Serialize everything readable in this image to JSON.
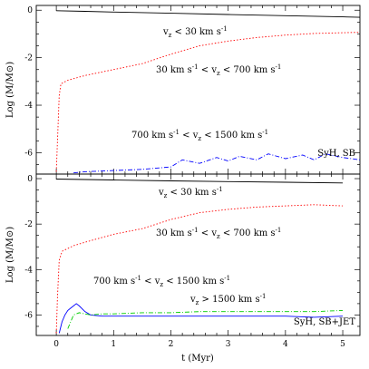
{
  "chart_data": [
    {
      "type": "line",
      "panel": "top",
      "ylabel": "Log (M/M⊙)",
      "xlim": [
        -0.35,
        5.3
      ],
      "ylim": [
        -6.9,
        0.2
      ],
      "yticks": [
        0,
        -2,
        -4,
        -6
      ],
      "tag": "SyH, SB",
      "series": [
        {
          "label_parts": [
            "v",
            "z",
            " < 30 km s",
            "-1",
            ""
          ],
          "color": "#000000",
          "dash": "",
          "x": [
            0.0,
            0.5,
            1.0,
            2.0,
            3.0,
            4.0,
            5.0,
            5.3
          ],
          "y": [
            -0.02,
            -0.05,
            -0.08,
            -0.13,
            -0.18,
            -0.23,
            -0.28,
            -0.3
          ]
        },
        {
          "label_parts": [
            "30 km s",
            "-1",
            " < v",
            "z",
            " < 700 km s",
            "-1"
          ],
          "color": "#ff0000",
          "dash": "1.5,2",
          "x": [
            0.0,
            0.02,
            0.05,
            0.08,
            0.2,
            0.5,
            1.0,
            1.5,
            2.0,
            2.5,
            3.0,
            3.5,
            4.0,
            4.5,
            5.0,
            5.3
          ],
          "y": [
            -6.8,
            -5.5,
            -3.6,
            -3.1,
            -2.95,
            -2.75,
            -2.5,
            -2.25,
            -1.85,
            -1.5,
            -1.3,
            -1.15,
            -1.05,
            -0.98,
            -0.95,
            -0.93
          ]
        },
        {
          "label_parts": [
            "700 km s",
            "-1",
            " < v",
            "z",
            " < 1500 km s",
            "-1"
          ],
          "color": "#0000ff",
          "dash": "5,2,1,2",
          "x": [
            0.3,
            0.5,
            1.0,
            1.5,
            2.0,
            2.2,
            2.5,
            2.8,
            3.0,
            3.2,
            3.5,
            3.7,
            4.0,
            4.3,
            4.5,
            4.7,
            5.0,
            5.3
          ],
          "y": [
            -6.85,
            -6.8,
            -6.75,
            -6.7,
            -6.6,
            -6.3,
            -6.45,
            -6.2,
            -6.35,
            -6.15,
            -6.3,
            -6.05,
            -6.25,
            -6.1,
            -6.3,
            -6.05,
            -6.2,
            -6.3
          ]
        }
      ]
    },
    {
      "type": "line",
      "panel": "bottom",
      "xlabel": "t (Myr)",
      "ylabel": "Log (M/M⊙)",
      "xlim": [
        -0.35,
        5.3
      ],
      "ylim": [
        -6.9,
        0.2
      ],
      "xticks": [
        0,
        1,
        2,
        3,
        4,
        5
      ],
      "yticks": [
        0,
        -2,
        -4,
        -6
      ],
      "tag": "SyH, SB+JET",
      "series": [
        {
          "label_parts": [
            "v",
            "z",
            " < 30 km s",
            "-1",
            ""
          ],
          "color": "#000000",
          "dash": "",
          "x": [
            0.0,
            0.5,
            1.0,
            2.0,
            3.0,
            4.0,
            5.0
          ],
          "y": [
            -0.02,
            -0.04,
            -0.06,
            -0.1,
            -0.13,
            -0.16,
            -0.19
          ]
        },
        {
          "label_parts": [
            "30 km s",
            "-1",
            " < v",
            "z",
            " < 700 km s",
            "-1"
          ],
          "color": "#ff0000",
          "dash": "1.5,2",
          "x": [
            0.0,
            0.02,
            0.05,
            0.1,
            0.3,
            0.5,
            1.0,
            1.5,
            2.0,
            2.5,
            3.0,
            3.5,
            4.0,
            4.5,
            5.0
          ],
          "y": [
            -6.8,
            -5.2,
            -3.6,
            -3.2,
            -2.95,
            -2.8,
            -2.45,
            -2.2,
            -1.8,
            -1.5,
            -1.35,
            -1.25,
            -1.2,
            -1.15,
            -1.2
          ]
        },
        {
          "label_parts": [
            "700 km s",
            "-1",
            " < v",
            "z",
            " < 1500 km s",
            "-1"
          ],
          "color": "#0000ff",
          "dash": "",
          "x": [
            0.05,
            0.1,
            0.15,
            0.2,
            0.25,
            0.3,
            0.35,
            0.4,
            0.5,
            0.6,
            0.8,
            1.0,
            1.5,
            2.0,
            2.5,
            3.0,
            3.5,
            4.0,
            4.5,
            5.0
          ],
          "y": [
            -6.8,
            -6.3,
            -6.0,
            -5.8,
            -5.7,
            -5.6,
            -5.5,
            -5.6,
            -5.85,
            -6.0,
            -6.05,
            -6.05,
            -6.05,
            -6.05,
            -6.05,
            -6.05,
            -6.05,
            -6.05,
            -6.1,
            -6.05
          ]
        },
        {
          "label_parts": [
            "v",
            "z",
            " > 1500 km s",
            "-1",
            ""
          ],
          "color": "#00cc00",
          "dash": "5,2,1,2",
          "x": [
            0.2,
            0.3,
            0.4,
            0.5,
            0.6,
            0.8,
            1.0,
            1.5,
            2.0,
            2.5,
            3.0,
            3.5,
            4.0,
            4.5,
            5.0
          ],
          "y": [
            -6.6,
            -6.0,
            -5.9,
            -5.95,
            -6.0,
            -5.95,
            -5.95,
            -5.9,
            -5.9,
            -5.85,
            -5.85,
            -5.85,
            -5.85,
            -5.85,
            -5.8
          ]
        }
      ]
    }
  ]
}
